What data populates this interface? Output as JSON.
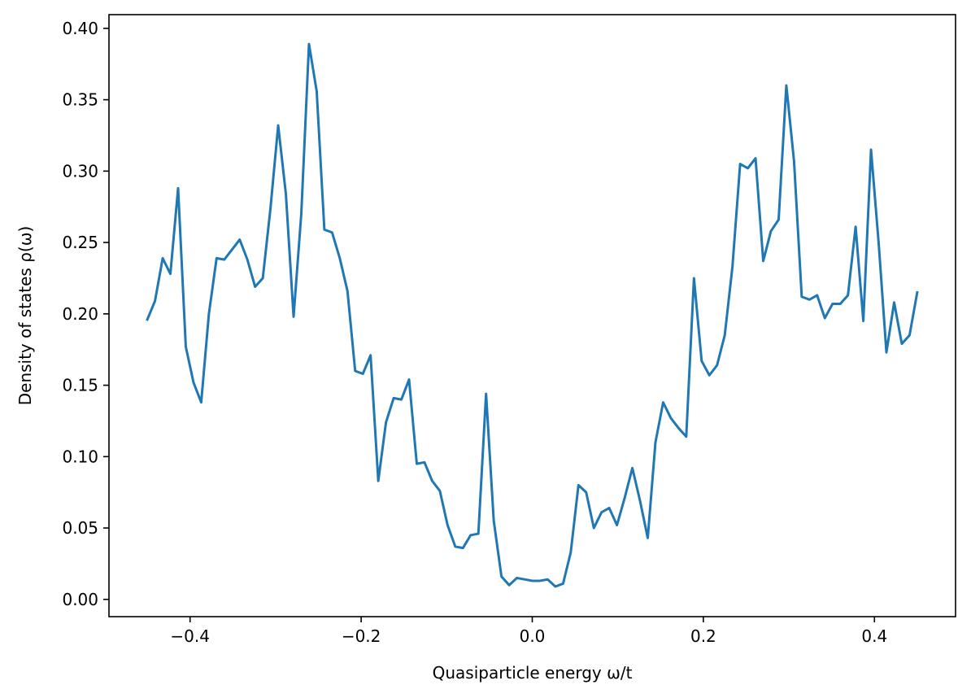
{
  "chart_data": {
    "type": "line",
    "title": "",
    "xlabel": "Quasiparticle energy ω/t",
    "ylabel": "Density of states ρ(ω)",
    "xlim": [
      -0.4948,
      0.4948
    ],
    "ylim": [
      -0.0121,
      0.4096
    ],
    "grid": false,
    "line_color": "#1f77b4",
    "x_ticks": [
      {
        "value": -0.4,
        "label": "−0.4"
      },
      {
        "value": -0.2,
        "label": "−0.2"
      },
      {
        "value": 0.0,
        "label": "0.0"
      },
      {
        "value": 0.2,
        "label": "0.2"
      },
      {
        "value": 0.4,
        "label": "0.4"
      }
    ],
    "y_ticks": [
      {
        "value": 0.0,
        "label": "0.00"
      },
      {
        "value": 0.05,
        "label": "0.05"
      },
      {
        "value": 0.1,
        "label": "0.10"
      },
      {
        "value": 0.15,
        "label": "0.15"
      },
      {
        "value": 0.2,
        "label": "0.20"
      },
      {
        "value": 0.25,
        "label": "0.25"
      },
      {
        "value": 0.3,
        "label": "0.30"
      },
      {
        "value": 0.35,
        "label": "0.35"
      },
      {
        "value": 0.4,
        "label": "0.40"
      }
    ],
    "x": [
      -0.45,
      -0.441,
      -0.432,
      -0.423,
      -0.414,
      -0.405,
      -0.396,
      -0.387,
      -0.378,
      -0.369,
      -0.36,
      -0.351,
      -0.342,
      -0.333,
      -0.324,
      -0.315,
      -0.306,
      -0.297,
      -0.288,
      -0.279,
      -0.27,
      -0.261,
      -0.252,
      -0.243,
      -0.234,
      -0.225,
      -0.216,
      -0.207,
      -0.198,
      -0.189,
      -0.18,
      -0.171,
      -0.162,
      -0.153,
      -0.144,
      -0.135,
      -0.126,
      -0.117,
      -0.108,
      -0.099,
      -0.09,
      -0.081,
      -0.072,
      -0.063,
      -0.054,
      -0.045,
      -0.036,
      -0.027,
      -0.018,
      -0.009,
      0.0,
      0.009,
      0.018,
      0.027,
      0.036,
      0.045,
      0.054,
      0.063,
      0.072,
      0.081,
      0.09,
      0.099,
      0.108,
      0.117,
      0.126,
      0.135,
      0.144,
      0.153,
      0.162,
      0.171,
      0.18,
      0.189,
      0.198,
      0.207,
      0.216,
      0.225,
      0.234,
      0.243,
      0.252,
      0.261,
      0.27,
      0.279,
      0.288,
      0.297,
      0.306,
      0.315,
      0.324,
      0.333,
      0.342,
      0.351,
      0.36,
      0.369,
      0.378,
      0.387,
      0.396,
      0.405,
      0.414,
      0.423,
      0.432,
      0.441,
      0.45
    ],
    "y": [
      0.196,
      0.209,
      0.239,
      0.228,
      0.288,
      0.177,
      0.152,
      0.138,
      0.2,
      0.239,
      0.238,
      0.245,
      0.252,
      0.238,
      0.219,
      0.225,
      0.274,
      0.332,
      0.284,
      0.198,
      0.27,
      0.389,
      0.356,
      0.259,
      0.257,
      0.239,
      0.216,
      0.16,
      0.158,
      0.171,
      0.083,
      0.124,
      0.141,
      0.14,
      0.154,
      0.095,
      0.096,
      0.083,
      0.076,
      0.052,
      0.037,
      0.036,
      0.045,
      0.046,
      0.144,
      0.055,
      0.016,
      0.01,
      0.015,
      0.014,
      0.013,
      0.013,
      0.014,
      0.009,
      0.011,
      0.033,
      0.08,
      0.075,
      0.05,
      0.061,
      0.064,
      0.052,
      0.071,
      0.092,
      0.069,
      0.043,
      0.11,
      0.138,
      0.127,
      0.12,
      0.114,
      0.225,
      0.167,
      0.157,
      0.164,
      0.185,
      0.233,
      0.305,
      0.302,
      0.309,
      0.237,
      0.258,
      0.266,
      0.36,
      0.307,
      0.212,
      0.21,
      0.213,
      0.197,
      0.207,
      0.207,
      0.213,
      0.261,
      0.195,
      0.315,
      0.249,
      0.173,
      0.208,
      0.179,
      0.185,
      0.215
    ]
  }
}
